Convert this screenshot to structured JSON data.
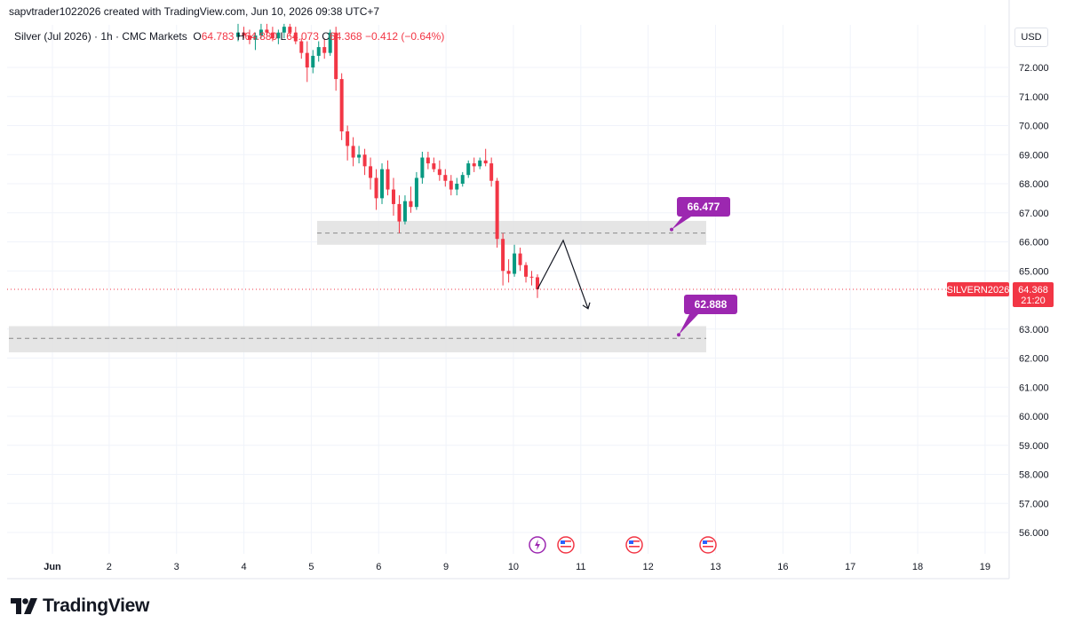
{
  "header": {
    "credit": "sapvtrader1022026 created with TradingView.com, Jun 10, 2026 09:38 UTC+7",
    "symbol": "Silver (Jul 2026) · 1h · CMC Markets",
    "open_label": "O",
    "open": "64.783",
    "high_label": "H",
    "high": "64.880",
    "low_label": "L",
    "low": "64.073",
    "close_label": "C",
    "close": "64.368",
    "change": "−0.412 (−0.64%)"
  },
  "currency": "USD",
  "brand": {
    "name": "TradingView"
  },
  "colors": {
    "up": "#089981",
    "down": "#f23645",
    "zone": "#e0e0e0",
    "label": "#9c27b0",
    "price_line": "#f23645",
    "grid": "#f0f3fa"
  },
  "chart_data": {
    "type": "candlestick",
    "title": "",
    "price_axis": {
      "range": [
        55.4,
        73.6
      ],
      "ticks": [
        "72.000",
        "71.000",
        "70.000",
        "69.000",
        "68.000",
        "67.000",
        "66.000",
        "65.000",
        "63.000",
        "62.000",
        "61.000",
        "60.000",
        "59.000",
        "58.000",
        "57.000",
        "56.000"
      ]
    },
    "time_axis": {
      "labels": [
        "Jun",
        "2",
        "3",
        "4",
        "5",
        "6",
        "9",
        "10",
        "11",
        "12",
        "13",
        "16",
        "17",
        "18",
        "19"
      ]
    },
    "series": [
      {
        "values": [
          {
            "o": 73.05,
            "h": 73.5,
            "l": 72.9,
            "c": 73.2
          },
          {
            "o": 73.2,
            "h": 73.4,
            "l": 73.0,
            "c": 73.1
          },
          {
            "o": 73.1,
            "h": 73.3,
            "l": 72.8,
            "c": 72.95
          },
          {
            "o": 72.95,
            "h": 73.2,
            "l": 72.6,
            "c": 73.1
          },
          {
            "o": 73.1,
            "h": 73.5,
            "l": 73.0,
            "c": 73.3
          },
          {
            "o": 73.3,
            "h": 73.5,
            "l": 73.1,
            "c": 73.2
          },
          {
            "o": 73.2,
            "h": 73.4,
            "l": 72.9,
            "c": 73.0
          },
          {
            "o": 73.0,
            "h": 73.3,
            "l": 72.8,
            "c": 73.2
          },
          {
            "o": 73.2,
            "h": 73.5,
            "l": 73.0,
            "c": 73.4
          },
          {
            "o": 73.4,
            "h": 73.5,
            "l": 73.1,
            "c": 73.2
          },
          {
            "o": 73.2,
            "h": 73.4,
            "l": 72.8,
            "c": 72.9
          },
          {
            "o": 72.9,
            "h": 73.0,
            "l": 72.3,
            "c": 72.5
          },
          {
            "o": 72.5,
            "h": 72.9,
            "l": 71.5,
            "c": 72.0
          },
          {
            "o": 72.0,
            "h": 72.6,
            "l": 71.8,
            "c": 72.4
          },
          {
            "o": 72.4,
            "h": 72.9,
            "l": 72.2,
            "c": 72.7
          },
          {
            "o": 72.7,
            "h": 73.0,
            "l": 72.3,
            "c": 72.5
          },
          {
            "o": 72.5,
            "h": 73.3,
            "l": 72.4,
            "c": 73.2
          },
          {
            "o": 73.2,
            "h": 73.4,
            "l": 71.2,
            "c": 71.6
          },
          {
            "o": 71.6,
            "h": 71.8,
            "l": 69.5,
            "c": 69.8
          },
          {
            "o": 69.8,
            "h": 70.0,
            "l": 68.8,
            "c": 69.3
          },
          {
            "o": 69.3,
            "h": 69.6,
            "l": 68.6,
            "c": 68.9
          },
          {
            "o": 68.9,
            "h": 69.3,
            "l": 68.7,
            "c": 69.0
          },
          {
            "o": 69.0,
            "h": 69.2,
            "l": 68.3,
            "c": 68.6
          },
          {
            "o": 68.6,
            "h": 68.9,
            "l": 67.8,
            "c": 68.2
          },
          {
            "o": 68.2,
            "h": 68.5,
            "l": 67.1,
            "c": 67.5
          },
          {
            "o": 67.5,
            "h": 68.7,
            "l": 67.3,
            "c": 68.5
          },
          {
            "o": 68.5,
            "h": 68.8,
            "l": 67.6,
            "c": 67.8
          },
          {
            "o": 67.8,
            "h": 68.2,
            "l": 66.9,
            "c": 67.3
          },
          {
            "o": 67.3,
            "h": 67.6,
            "l": 66.3,
            "c": 66.7
          },
          {
            "o": 66.7,
            "h": 67.6,
            "l": 66.6,
            "c": 67.4
          },
          {
            "o": 67.4,
            "h": 67.9,
            "l": 67.0,
            "c": 67.2
          },
          {
            "o": 67.2,
            "h": 68.4,
            "l": 67.1,
            "c": 68.2
          },
          {
            "o": 68.2,
            "h": 69.1,
            "l": 68.0,
            "c": 68.9
          },
          {
            "o": 68.9,
            "h": 69.1,
            "l": 68.5,
            "c": 68.7
          },
          {
            "o": 68.7,
            "h": 68.9,
            "l": 68.4,
            "c": 68.5
          },
          {
            "o": 68.5,
            "h": 68.8,
            "l": 68.1,
            "c": 68.3
          },
          {
            "o": 68.3,
            "h": 68.5,
            "l": 67.9,
            "c": 68.1
          },
          {
            "o": 68.1,
            "h": 68.3,
            "l": 67.6,
            "c": 67.8
          },
          {
            "o": 67.8,
            "h": 68.2,
            "l": 67.6,
            "c": 68.0
          },
          {
            "o": 68.0,
            "h": 68.4,
            "l": 67.9,
            "c": 68.3
          },
          {
            "o": 68.3,
            "h": 68.8,
            "l": 68.2,
            "c": 68.7
          },
          {
            "o": 68.7,
            "h": 68.9,
            "l": 68.4,
            "c": 68.6
          },
          {
            "o": 68.6,
            "h": 68.9,
            "l": 68.5,
            "c": 68.8
          },
          {
            "o": 68.8,
            "h": 69.2,
            "l": 68.6,
            "c": 68.7
          },
          {
            "o": 68.7,
            "h": 68.9,
            "l": 67.9,
            "c": 68.1
          },
          {
            "o": 68.1,
            "h": 68.2,
            "l": 65.8,
            "c": 66.1
          },
          {
            "o": 66.1,
            "h": 66.3,
            "l": 64.5,
            "c": 65.0
          },
          {
            "o": 65.0,
            "h": 65.4,
            "l": 64.6,
            "c": 64.9
          },
          {
            "o": 64.9,
            "h": 65.9,
            "l": 64.8,
            "c": 65.6
          },
          {
            "o": 65.6,
            "h": 65.8,
            "l": 65.0,
            "c": 65.2
          },
          {
            "o": 65.2,
            "h": 65.3,
            "l": 64.6,
            "c": 64.8
          },
          {
            "o": 64.8,
            "h": 65.0,
            "l": 64.5,
            "c": 64.78
          },
          {
            "o": 64.78,
            "h": 64.88,
            "l": 64.07,
            "c": 64.37
          }
        ]
      }
    ],
    "zones": [
      {
        "from": 65.9,
        "to": 66.72,
        "mid": 66.3,
        "label": "66.477"
      },
      {
        "from": 62.2,
        "to": 63.1,
        "mid": 62.68,
        "label": "62.888"
      }
    ],
    "last_price": {
      "label": "SILVERN2026",
      "value": "64.368",
      "countdown": "21:20",
      "price": 64.368
    },
    "projection": [
      64.37,
      66.05,
      63.7
    ],
    "event_markers": [
      {
        "icon": "lightning-icon"
      },
      {
        "icon": "us-flag-icon"
      },
      {
        "icon": "us-flag-icon"
      },
      {
        "icon": "us-flag-icon"
      }
    ]
  }
}
